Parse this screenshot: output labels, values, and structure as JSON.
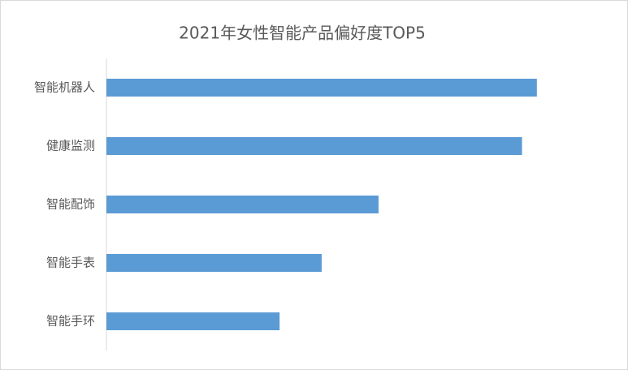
{
  "chart_data": {
    "type": "bar",
    "orientation": "horizontal",
    "title": "2021年女性智能产品偏好度TOP5",
    "categories": [
      "智能机器人",
      "健康监测",
      "智能配饰",
      "智能手表",
      "智能手环"
    ],
    "values": [
      87,
      84,
      55,
      43.5,
      35
    ],
    "color": "#5b9bd5",
    "xlim": [
      0,
      100
    ]
  }
}
